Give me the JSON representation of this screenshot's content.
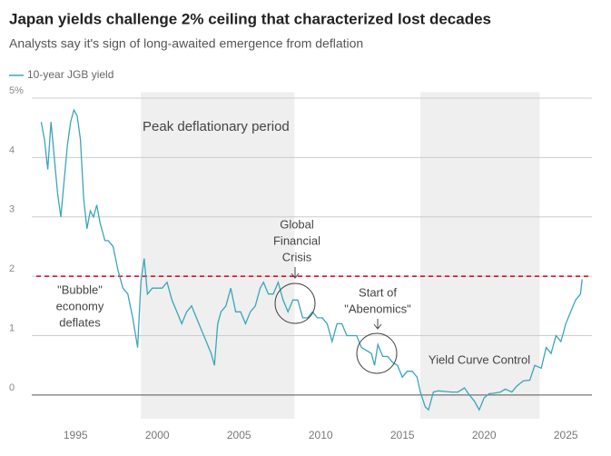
{
  "chart_data": {
    "type": "line",
    "title": "Japan yields challenge 2% ceiling that characterized lost decades",
    "subtitle": "Analysts say it's sign of long-awaited emergence from deflation",
    "xlim": [
      1992.6,
      2026.6
    ],
    "xticks": [
      1995,
      2000,
      2005,
      2010,
      2015,
      2020,
      2025
    ],
    "ylim": [
      -0.4,
      5.1
    ],
    "yticks": [
      0,
      1,
      2,
      3,
      4,
      {
        "value": 5,
        "label": "5%"
      }
    ],
    "grid": true,
    "reference_line": {
      "value": 2,
      "color": "#d0021b"
    },
    "shaded_periods": [
      {
        "range": [
          1999,
          2008.4
        ],
        "label": "Peak deflationary period"
      },
      {
        "range": [
          2016.1,
          2023.4
        ],
        "label": "Yield Curve Control"
      }
    ],
    "annotations": [
      {
        "lines": [
          "\"Bubble\"",
          "economy",
          "deflates"
        ]
      },
      {
        "lines": [
          "Global",
          "Financial",
          "Crisis"
        ]
      },
      {
        "lines": [
          "Start of",
          "\"Abenomics\""
        ]
      }
    ],
    "x": [
      1992.9,
      1993.1,
      1993.3,
      1993.5,
      1993.7,
      1993.9,
      1994.1,
      1994.3,
      1994.5,
      1994.7,
      1994.9,
      1995.1,
      1995.3,
      1995.5,
      1995.7,
      1995.9,
      1996.1,
      1996.3,
      1996.5,
      1996.8,
      1997.0,
      1997.3,
      1997.6,
      1997.9,
      1998.2,
      1998.5,
      1998.8,
      1999.0,
      1999.2,
      1999.4,
      1999.7,
      2000.0,
      2000.3,
      2000.6,
      2000.9,
      2001.2,
      2001.5,
      2001.8,
      2002.1,
      2002.4,
      2002.7,
      2003.0,
      2003.3,
      2003.5,
      2003.7,
      2003.9,
      2004.2,
      2004.5,
      2004.8,
      2005.1,
      2005.4,
      2005.7,
      2006.0,
      2006.3,
      2006.5,
      2006.8,
      2007.1,
      2007.4,
      2007.7,
      2008.0,
      2008.3,
      2008.6,
      2008.9,
      2009.2,
      2009.5,
      2009.8,
      2010.1,
      2010.4,
      2010.7,
      2011.0,
      2011.3,
      2011.6,
      2011.9,
      2012.2,
      2012.5,
      2012.8,
      2013.1,
      2013.3,
      2013.5,
      2013.8,
      2014.1,
      2014.4,
      2014.7,
      2015.0,
      2015.3,
      2015.6,
      2015.9,
      2016.1,
      2016.4,
      2016.6,
      2016.9,
      2017.2,
      2017.6,
      2018.0,
      2018.4,
      2018.8,
      2019.1,
      2019.4,
      2019.7,
      2020.0,
      2020.3,
      2020.6,
      2021.0,
      2021.3,
      2021.7,
      2022.0,
      2022.4,
      2022.8,
      2023.1,
      2023.5,
      2023.8,
      2024.1,
      2024.4,
      2024.7,
      2025.0,
      2025.3,
      2025.6,
      2025.9,
      2026.0
    ],
    "series": [
      {
        "name": "10-year JGB yield",
        "color": "#3aa6b9",
        "values": [
          4.6,
          4.3,
          3.8,
          4.6,
          4.0,
          3.4,
          3.0,
          3.6,
          4.2,
          4.6,
          4.8,
          4.7,
          4.3,
          3.3,
          2.8,
          3.1,
          3.0,
          3.2,
          2.9,
          2.6,
          2.6,
          2.5,
          2.1,
          1.8,
          1.7,
          1.3,
          0.8,
          1.9,
          2.3,
          1.7,
          1.8,
          1.8,
          1.8,
          1.9,
          1.6,
          1.4,
          1.2,
          1.4,
          1.5,
          1.3,
          1.1,
          0.9,
          0.7,
          0.5,
          1.2,
          1.4,
          1.5,
          1.8,
          1.4,
          1.4,
          1.2,
          1.4,
          1.5,
          1.8,
          1.9,
          1.7,
          1.7,
          1.9,
          1.6,
          1.4,
          1.6,
          1.6,
          1.3,
          1.3,
          1.4,
          1.3,
          1.3,
          1.2,
          0.9,
          1.2,
          1.2,
          1.0,
          1.0,
          1.0,
          0.8,
          0.75,
          0.7,
          0.5,
          0.85,
          0.65,
          0.65,
          0.55,
          0.5,
          0.3,
          0.4,
          0.4,
          0.3,
          0.05,
          -0.2,
          -0.25,
          0.05,
          0.07,
          0.06,
          0.05,
          0.05,
          0.12,
          0.0,
          -0.1,
          -0.25,
          -0.05,
          0.02,
          0.03,
          0.05,
          0.1,
          0.05,
          0.15,
          0.24,
          0.25,
          0.5,
          0.45,
          0.8,
          0.7,
          1.0,
          0.9,
          1.2,
          1.4,
          1.6,
          1.7,
          1.95
        ]
      }
    ]
  }
}
